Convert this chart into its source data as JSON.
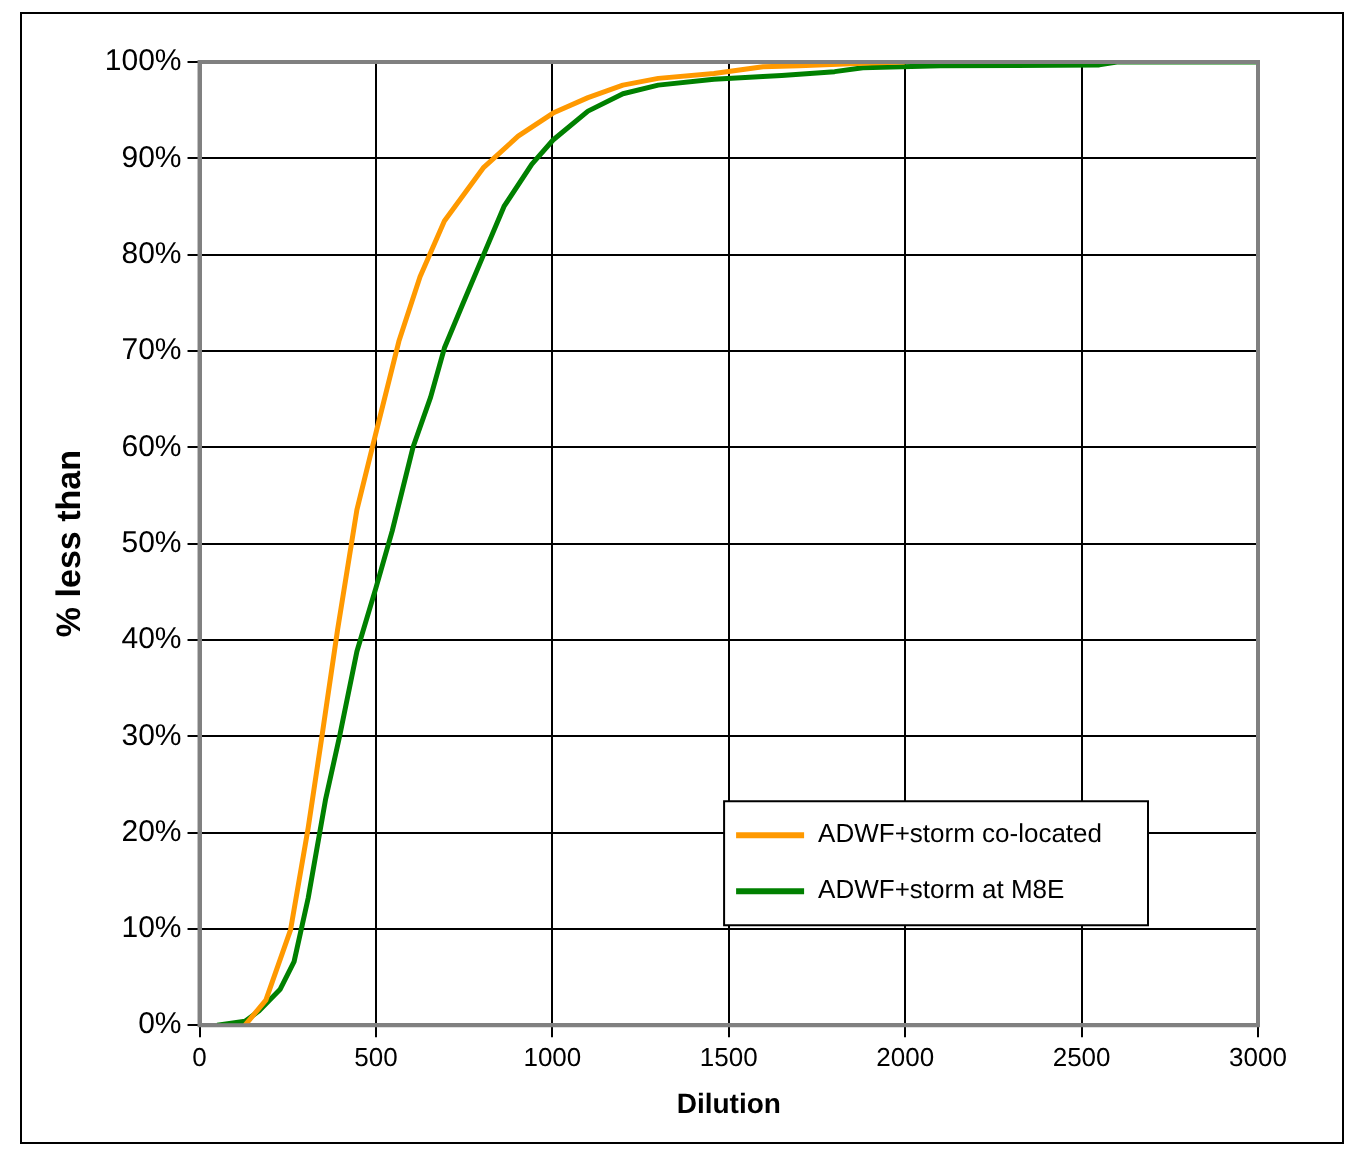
{
  "chart_data": {
    "type": "line",
    "xlabel": "Dilution",
    "ylabel": "% less than",
    "xlim": [
      0,
      3000
    ],
    "xticks": [
      0,
      500,
      1000,
      1500,
      2000,
      2500,
      3000
    ],
    "ylim": [
      0,
      100
    ],
    "yticks": [
      {
        "value": 0,
        "label": "0%"
      },
      {
        "value": 10,
        "label": "10%"
      },
      {
        "value": 20,
        "label": "20%"
      },
      {
        "value": 30,
        "label": "30%"
      },
      {
        "value": 40,
        "label": "40%"
      },
      {
        "value": 50,
        "label": "50%"
      },
      {
        "value": 60,
        "label": "60%"
      },
      {
        "value": 70,
        "label": "70%"
      },
      {
        "value": 80,
        "label": "80%"
      },
      {
        "value": 90,
        "label": "90%"
      },
      {
        "value": 100,
        "label": "100%"
      }
    ],
    "grid": true,
    "legend": "bottom right",
    "marker": "none",
    "line_style": "solid",
    "series": [
      {
        "name": "ADWF+storm co-located",
        "color": "#ff9900",
        "x": [
          129,
          188,
          258,
          308,
          347,
          391,
          446,
          500,
          565,
          625,
          694,
          804,
          903,
          1002,
          1101,
          1200,
          1300,
          1458,
          1597,
          1700,
          1900,
          2000
        ],
        "values": [
          0,
          2.6,
          9.9,
          20.5,
          30,
          41,
          53.5,
          61.5,
          71,
          77.7,
          83.5,
          89,
          92.3,
          94.7,
          96.3,
          97.6,
          98.3,
          98.8,
          99.5,
          99.6,
          99.9,
          100
        ]
      },
      {
        "name": "ADWF+storm at M8E",
        "color": "#008000",
        "x": [
          50,
          129,
          169,
          228,
          268,
          308,
          357,
          397,
          446,
          500,
          546,
          605,
          655,
          694,
          744,
          804,
          863,
          942,
          1002,
          1101,
          1200,
          1300,
          1458,
          1597,
          1650,
          1800,
          1880,
          2100,
          2550,
          2600,
          3000
        ],
        "values": [
          0,
          0.4,
          1.5,
          3.7,
          6.6,
          13.2,
          23.4,
          30,
          38.8,
          45.4,
          51.3,
          60,
          65.2,
          70.3,
          74.7,
          79.9,
          85,
          89.4,
          91.9,
          94.9,
          96.7,
          97.6,
          98.2,
          98.5,
          98.6,
          99,
          99.4,
          99.6,
          99.7,
          100,
          100
        ]
      }
    ]
  }
}
